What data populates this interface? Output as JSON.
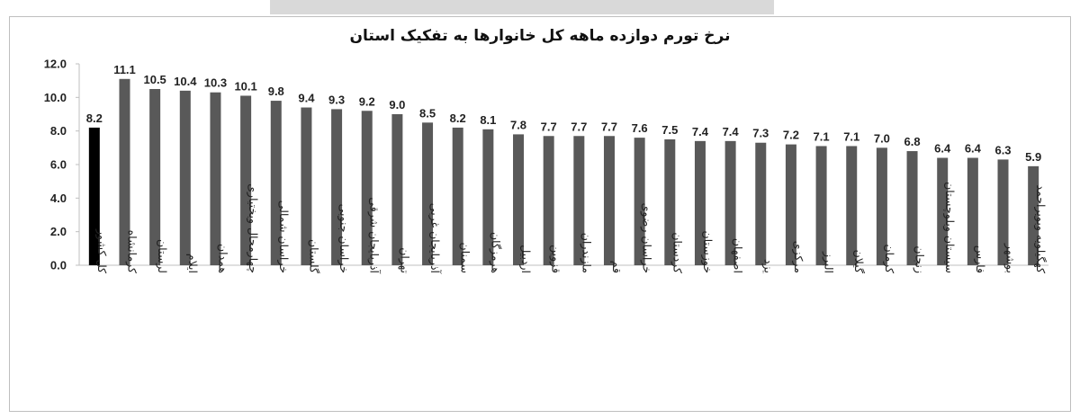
{
  "chart_data": {
    "type": "bar",
    "title": "نرخ تورم دوازده ماهه کل خانوارها به تفکیک استان",
    "xlabel": "",
    "ylabel": "",
    "ylim": [
      0,
      12
    ],
    "yticks": [
      "0.0",
      "2.0",
      "4.0",
      "6.0",
      "8.0",
      "10.0",
      "12.0"
    ],
    "grid": false,
    "colors": {
      "highlight": "#000000",
      "bar": "#595959"
    },
    "categories": [
      "کل کشور",
      "کرمانشاه",
      "لرستان",
      "ایلام",
      "همدان",
      "چهارمحال وبختیاری",
      "خراسان شمالی",
      "گلستان",
      "خراسان جنوبی",
      "آذربایجان شرقی",
      "تهران",
      "آذربایجان غربی",
      "سمنان",
      "هرمزگان",
      "اردبیل",
      "قزوین",
      "مازندران",
      "قم",
      "خراسان رضوی",
      "کردستان",
      "خوزستان",
      "اصفهان",
      "یزد",
      "مرکزی",
      "البرز",
      "گیلان",
      "کرمان",
      "زنجان",
      "سیستان وبلوچستان",
      "فارس",
      "بوشهر",
      "کهگیلویه وبویراحمد"
    ],
    "values": [
      8.2,
      11.1,
      10.5,
      10.4,
      10.3,
      10.1,
      9.8,
      9.4,
      9.3,
      9.2,
      9.0,
      8.5,
      8.2,
      8.1,
      7.8,
      7.7,
      7.7,
      7.7,
      7.6,
      7.5,
      7.4,
      7.4,
      7.3,
      7.2,
      7.1,
      7.1,
      7.0,
      6.8,
      6.4,
      6.4,
      6.3,
      5.9
    ],
    "value_labels": [
      "8.2",
      "11.1",
      "10.5",
      "10.4",
      "10.3",
      "10.1",
      "9.8",
      "9.4",
      "9.3",
      "9.2",
      "9.0",
      "8.5",
      "8.2",
      "8.1",
      "7.8",
      "7.7",
      "7.7",
      "7.7",
      "7.6",
      "7.5",
      "7.4",
      "7.4",
      "7.3",
      "7.2",
      "7.1",
      "7.1",
      "7.0",
      "6.8",
      "6.4",
      "6.4",
      "6.3",
      "5.9"
    ]
  }
}
